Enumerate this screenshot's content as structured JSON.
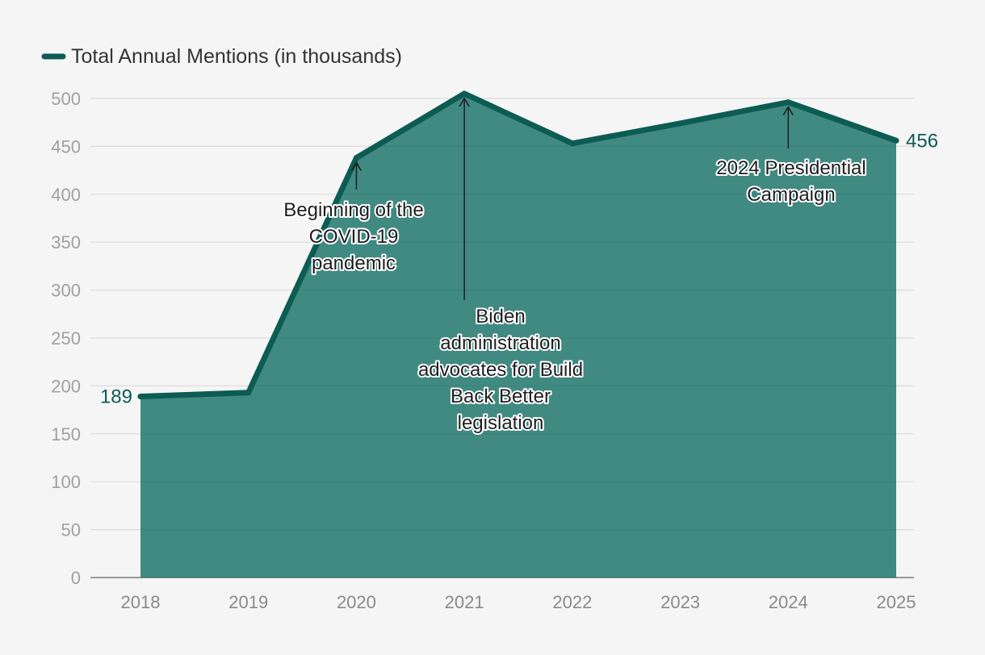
{
  "chart_data": {
    "type": "area",
    "series": [
      {
        "name": "Total Annual Mentions (in thousands)",
        "x": [
          "2018",
          "2019",
          "2020",
          "2021",
          "2022",
          "2023",
          "2024",
          "2025"
        ],
        "values": [
          189,
          193,
          438,
          505,
          453,
          474,
          496,
          456
        ]
      }
    ],
    "categories": [
      "2018",
      "2019",
      "2020",
      "2021",
      "2022",
      "2023",
      "2024",
      "2025"
    ],
    "ylim": [
      0,
      500
    ],
    "yticks": [
      "0",
      "50",
      "100",
      "150",
      "200",
      "250",
      "300",
      "350",
      "400",
      "450",
      "500"
    ],
    "yticks_values": [
      0,
      50,
      100,
      150,
      200,
      250,
      300,
      350,
      400,
      450,
      500
    ],
    "grid": true,
    "legend": "top-left",
    "endpoint_labels": {
      "start": "189",
      "end": "456"
    },
    "annotations": [
      {
        "category": "2020",
        "value": 438,
        "lines": [
          "Beginning of the",
          "COVID-19",
          "pandemic"
        ]
      },
      {
        "category": "2021",
        "value": 505,
        "lines": [
          "Biden",
          "administration",
          "advocates for Build",
          "Back Better",
          "legislation"
        ]
      },
      {
        "category": "2024",
        "value": 496,
        "lines": [
          "2024 Presidential",
          "Campaign"
        ]
      }
    ]
  },
  "colors": {
    "line": "#0d5c53",
    "fill": "#0d6b62",
    "grid": "#dcdcdc",
    "background": "#f5f5f5"
  }
}
